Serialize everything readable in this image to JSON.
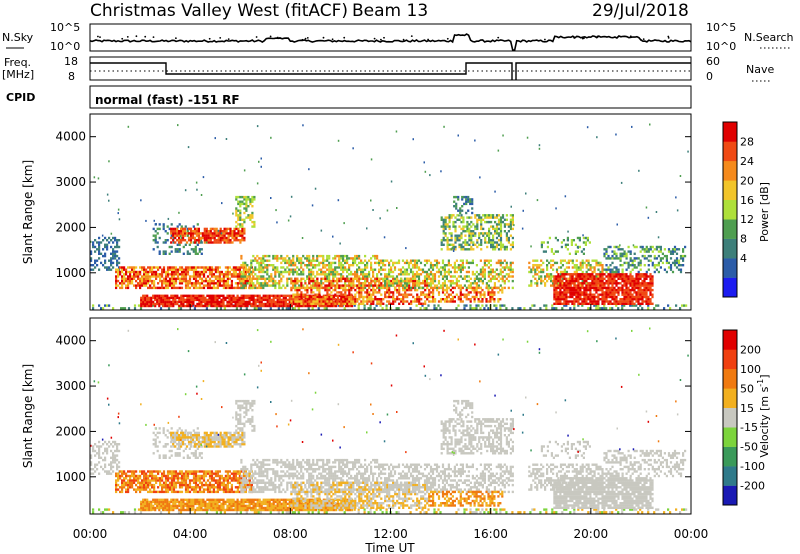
{
  "header": {
    "station": "Christmas Valley West (fitACF)",
    "beam": "Beam 13",
    "date": "29/Jul/2018"
  },
  "top_panels": {
    "nsky_label": "N.Sky",
    "nsky_ticks": [
      "10^5",
      "10^0"
    ],
    "nsearch_label": "N.Search",
    "nsearch_ticks": [
      "10^5",
      "10^0"
    ],
    "freq_label_1": "Freq.",
    "freq_label_2": "[MHz]",
    "freq_ticks": [
      "18",
      "8"
    ],
    "nave_label": "Nave",
    "nave_ticks": [
      "60",
      "0"
    ],
    "cpid_label": "CPID",
    "cpid_value": "normal (fast) -151 RF"
  },
  "chart_data": [
    {
      "type": "heatmap",
      "name": "power",
      "ylabel": "Slant Range [km]",
      "yticks": [
        "4000",
        "3000",
        "2000",
        "1000"
      ],
      "ylim": [
        180,
        4500
      ],
      "xlim_hours": [
        0,
        24
      ],
      "colorbar_label": "Power [dB]",
      "colorbar_ticks": [
        "28",
        "24",
        "20",
        "16",
        "12",
        "8",
        "4"
      ],
      "colors": [
        "#1c1cf0",
        "#2b5ca8",
        "#3d7f7a",
        "#4f9e50",
        "#aee03a",
        "#f2c52a",
        "#f58a1c",
        "#f04a14",
        "#e00000"
      ]
    },
    {
      "type": "heatmap",
      "name": "velocity",
      "ylabel": "Slant Range [km]",
      "yticks": [
        "4000",
        "3000",
        "2000",
        "1000"
      ],
      "ylim": [
        180,
        4500
      ],
      "xlabel": "Time UT",
      "xticks": [
        "00:00",
        "04:00",
        "08:00",
        "12:00",
        "16:00",
        "20:00",
        "00:00"
      ],
      "colorbar_label_main": "Velocity [m s",
      "colorbar_label_exp": "-1",
      "colorbar_label_end": "]",
      "colorbar_ticks": [
        "200",
        "100",
        "50",
        "15",
        "-15",
        "-50",
        "-100",
        "-200"
      ],
      "colors": [
        "#1a1ab4",
        "#2f7a8a",
        "#3a9a5a",
        "#7cd43c",
        "#c8c8c0",
        "#f2b020",
        "#f07a10",
        "#f04010",
        "#e00000"
      ]
    }
  ]
}
